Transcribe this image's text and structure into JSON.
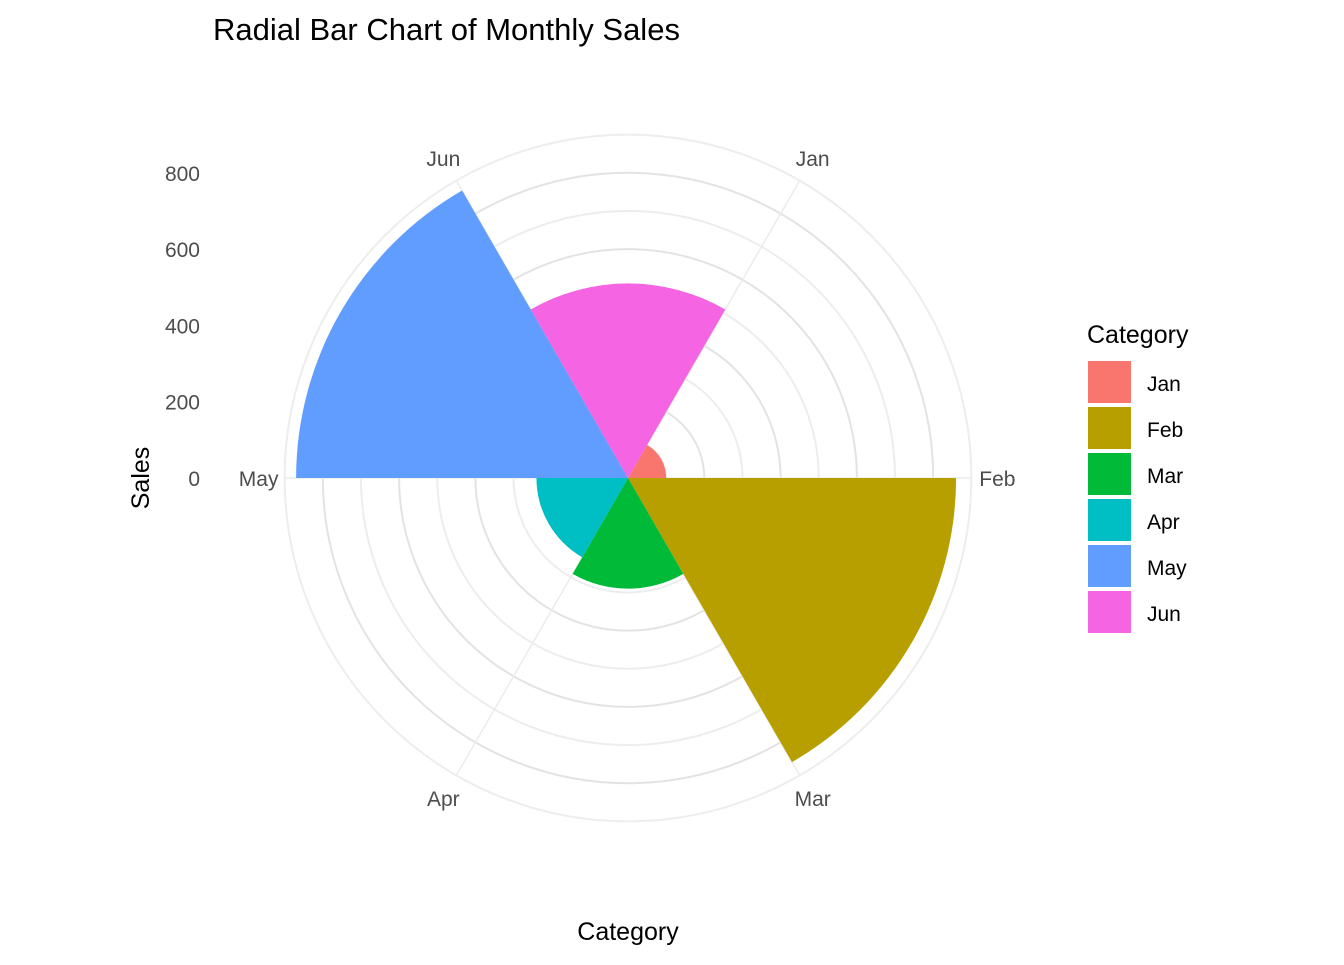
{
  "chart_data": {
    "type": "bar",
    "coord": "polar",
    "title": "Radial Bar Chart of Monthly Sales",
    "xlabel": "Category",
    "ylabel": "Sales",
    "categories": [
      "Jan",
      "Feb",
      "Mar",
      "Apr",
      "May",
      "Jun"
    ],
    "values": [
      100,
      860,
      290,
      240,
      870,
      510
    ],
    "y_ticks": [
      0,
      200,
      400,
      600,
      800
    ],
    "ylim": [
      0,
      900
    ],
    "legend": {
      "title": "Category",
      "placement": "right",
      "items": [
        "Jan",
        "Feb",
        "Mar",
        "Apr",
        "May",
        "Jun"
      ]
    },
    "colors": [
      "#F8766D",
      "#B79F00",
      "#00BA38",
      "#00BFC4",
      "#619CFF",
      "#F564E3"
    ],
    "grid": true
  }
}
